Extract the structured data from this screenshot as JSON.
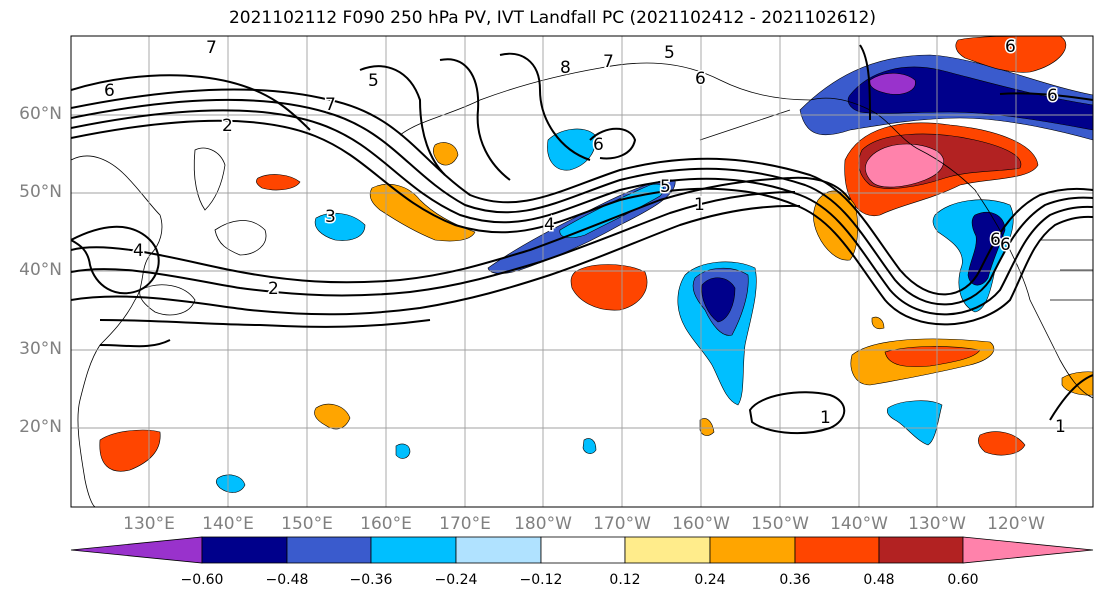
{
  "title": "2021102112 F090 250 hPa PV, IVT Landfall PC (2021102412 - 2021102612)",
  "lat_labels": [
    "60°N",
    "50°N",
    "40°N",
    "30°N",
    "20°N"
  ],
  "lon_labels": [
    "130°E",
    "140°E",
    "150°E",
    "160°E",
    "170°E",
    "180°W",
    "170°W",
    "160°W",
    "150°W",
    "140°W",
    "130°W",
    "120°W"
  ],
  "colorbar": {
    "ticks": [
      "−0.60",
      "−0.48",
      "−0.36",
      "−0.24",
      "−0.12",
      "0.12",
      "0.24",
      "0.36",
      "0.48",
      "0.60"
    ],
    "colors": [
      "#9932cc",
      "#00008b",
      "#3a5bcd",
      "#00bfff",
      "#b0e2ff",
      "#ffffff",
      "#ffec8b",
      "#ffa500",
      "#ff4500",
      "#b22222",
      "#ff82ab"
    ]
  },
  "contour_labels": [
    "7",
    "6",
    "2",
    "7",
    "5",
    "8",
    "7",
    "6",
    "5",
    "6",
    "6",
    "5",
    "4",
    "1",
    "3",
    "4",
    "2",
    "1",
    "6",
    "1",
    "6",
    "6"
  ]
}
